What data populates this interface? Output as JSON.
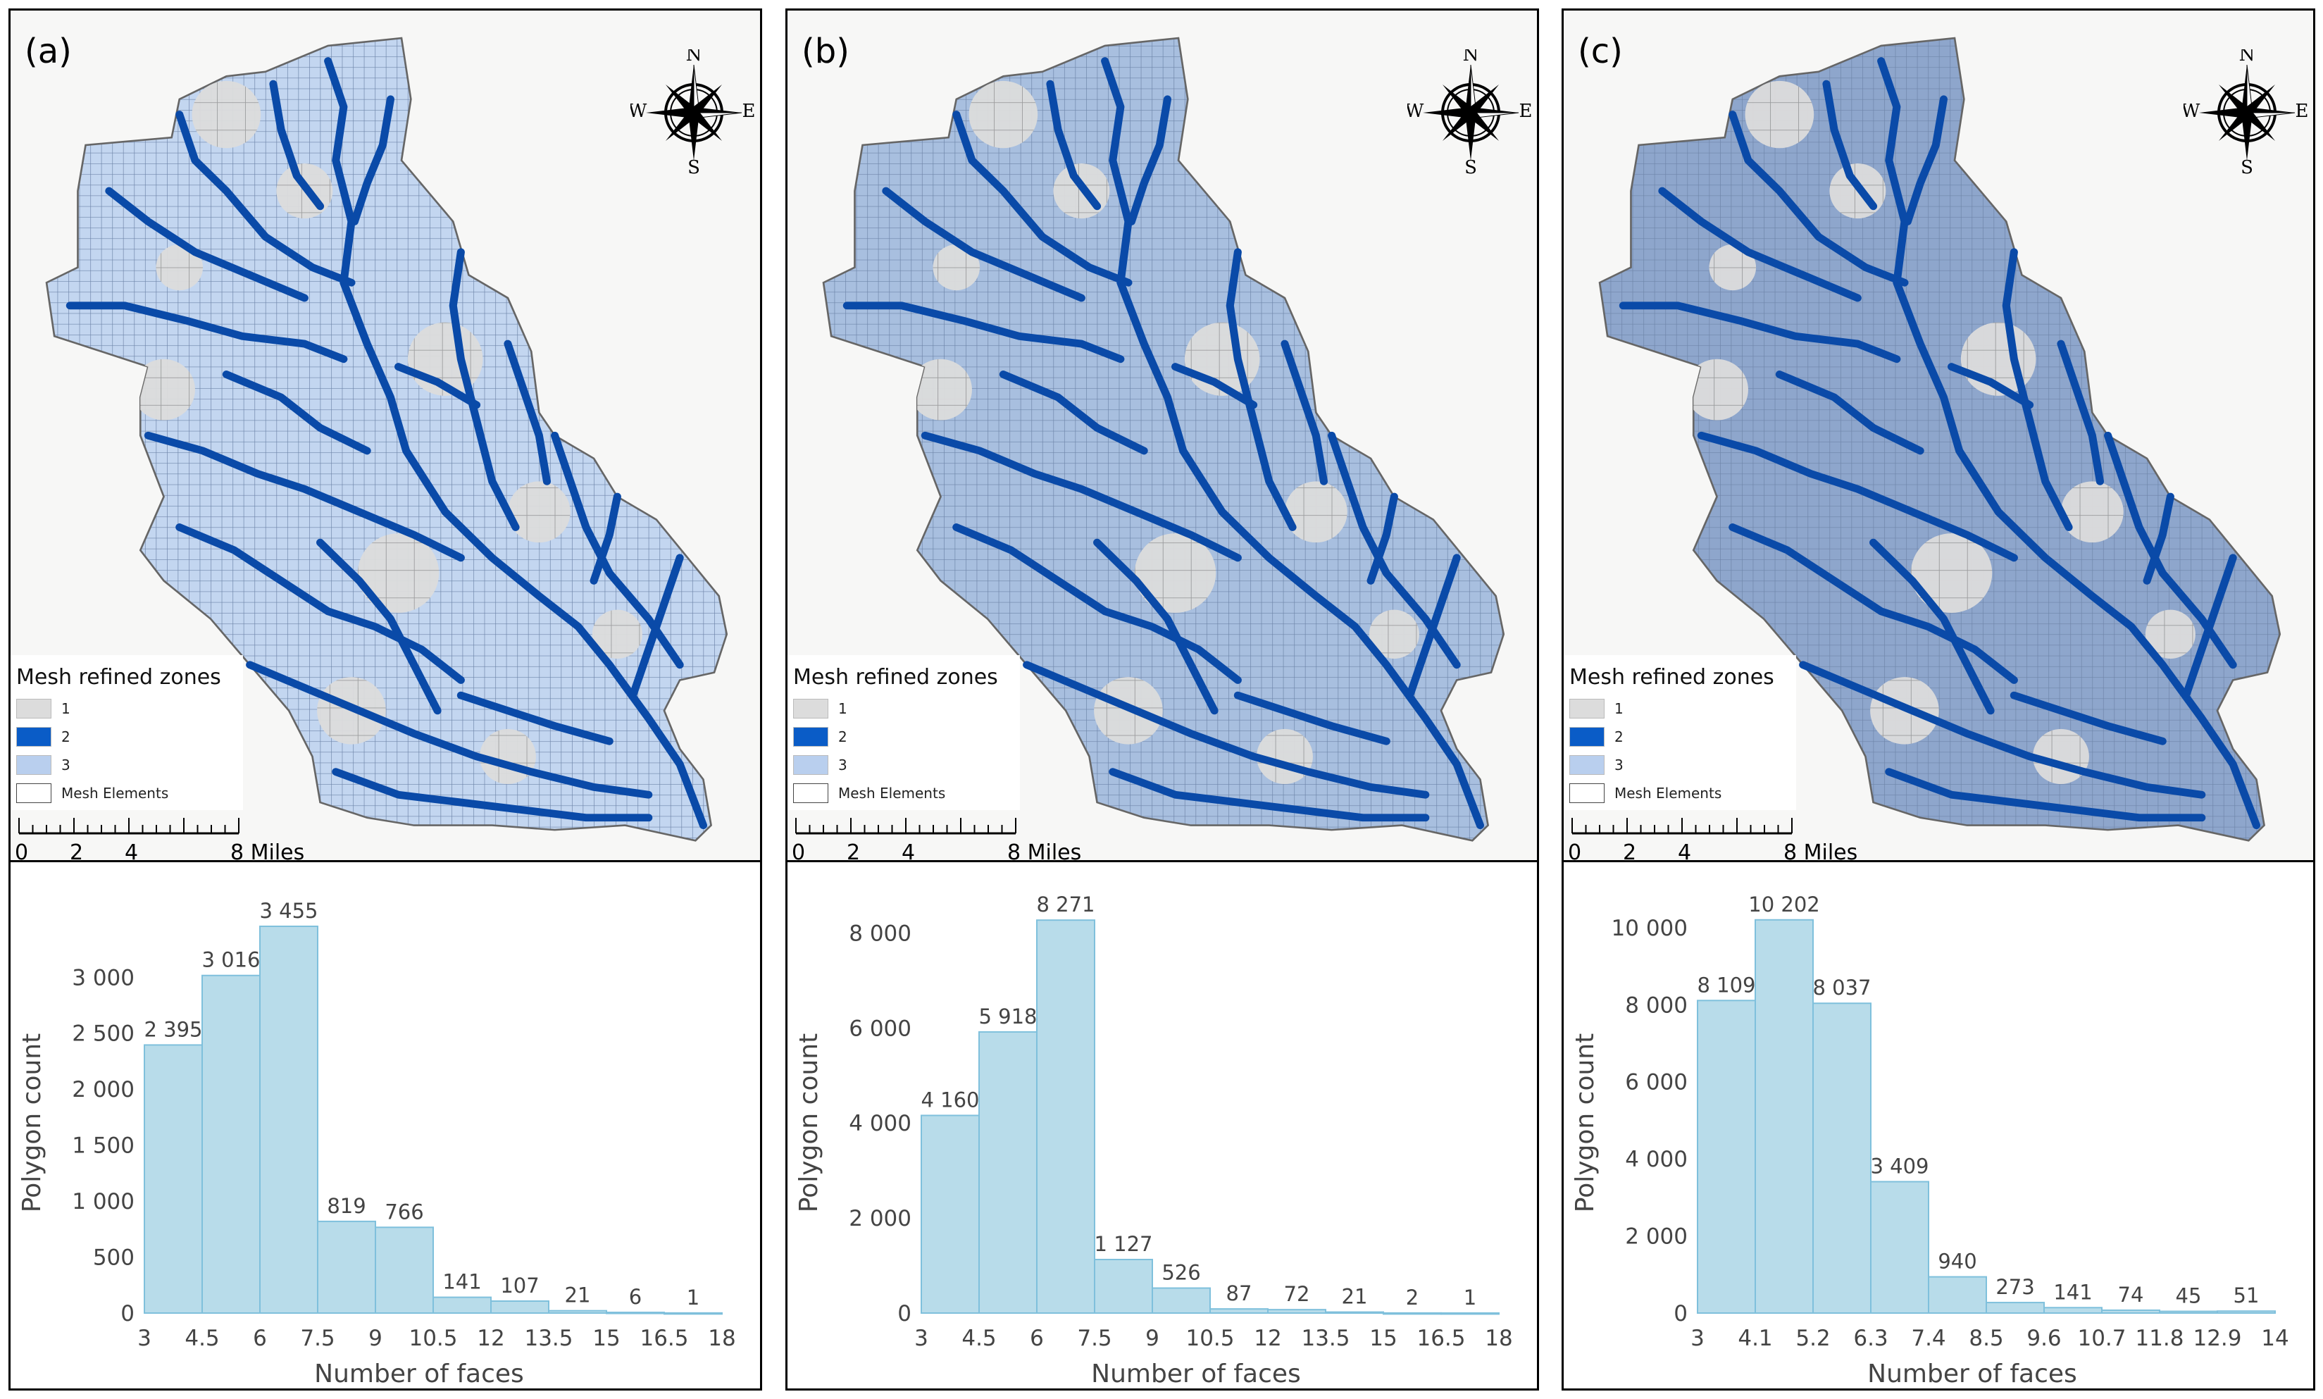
{
  "colors": {
    "zone1": "#dcdcdc",
    "zone2": "#0a5cc7",
    "zone3": "#b9cfee",
    "river": "#0a4aa8",
    "bar_fill": "#b8dcea",
    "bar_stroke": "#7fc0dc",
    "mesh_fill_a": "#c3d6f0",
    "mesh_fill_b": "#a8bfdf",
    "mesh_fill_c": "#8ea6cc"
  },
  "panels": [
    {
      "label": "(a)",
      "legend": {
        "title": "Mesh  refined zones",
        "items": [
          "1",
          "2",
          "3"
        ],
        "elements_label": "Mesh Elements"
      },
      "scale": {
        "ticks": [
          "0",
          "2",
          "4"
        ],
        "end": "8 Miles"
      },
      "compass": {
        "n": "N",
        "s": "S",
        "e": "E",
        "w": "W"
      },
      "chart_data": {
        "type": "bar",
        "title": "",
        "xlabel": "Number of faces",
        "ylabel": "Polygon count",
        "bin_edges": [
          3,
          4.5,
          6,
          7.5,
          9,
          10.5,
          12,
          13.5,
          15,
          16.5,
          18
        ],
        "x_tick_labels": [
          "3",
          "4.5",
          "6",
          "7.5",
          "9",
          "10.5",
          "12",
          "13.5",
          "15",
          "16.5",
          "18"
        ],
        "values": [
          2395,
          3016,
          3455,
          819,
          766,
          141,
          107,
          21,
          6,
          1
        ],
        "value_labels": [
          "2 395",
          "3 016",
          "3 455",
          "819",
          "766",
          "141",
          "107",
          "21",
          "6",
          "1"
        ],
        "y_ticks": [
          0,
          500,
          1000,
          1500,
          2000,
          2500,
          3000
        ],
        "y_tick_labels": [
          "0",
          "500",
          "1 000",
          "1 500",
          "2 000",
          "2 500",
          "3 000"
        ],
        "ylim": [
          0,
          3650
        ]
      }
    },
    {
      "label": "(b)",
      "legend": {
        "title": "Mesh  refined zones",
        "items": [
          "1",
          "2",
          "3"
        ],
        "elements_label": "Mesh Elements"
      },
      "scale": {
        "ticks": [
          "0",
          "2",
          "4"
        ],
        "end": "8 Miles"
      },
      "compass": {
        "n": "N",
        "s": "S",
        "e": "E",
        "w": "W"
      },
      "chart_data": {
        "type": "bar",
        "title": "",
        "xlabel": "Number of faces",
        "ylabel": "Polygon count",
        "bin_edges": [
          3,
          4.5,
          6,
          7.5,
          9,
          10.5,
          12,
          13.5,
          15,
          16.5,
          18
        ],
        "x_tick_labels": [
          "3",
          "4.5",
          "6",
          "7.5",
          "9",
          "10.5",
          "12",
          "13.5",
          "15",
          "16.5",
          "18"
        ],
        "values": [
          4160,
          5918,
          8271,
          1127,
          526,
          87,
          72,
          21,
          2,
          1
        ],
        "value_labels": [
          "4 160",
          "5 918",
          "8 271",
          "1 127",
          "526",
          "87",
          "72",
          "21",
          "2",
          "1"
        ],
        "y_ticks": [
          0,
          2000,
          4000,
          6000,
          8000
        ],
        "y_tick_labels": [
          "0",
          "2 000",
          "4 000",
          "6 000",
          "8 000"
        ],
        "ylim": [
          0,
          8600
        ]
      }
    },
    {
      "label": "(c)",
      "legend": {
        "title": "Mesh  refined zones",
        "items": [
          "1",
          "2",
          "3"
        ],
        "elements_label": "Mesh Elements"
      },
      "scale": {
        "ticks": [
          "0",
          "2",
          "4"
        ],
        "end": "8 Miles"
      },
      "compass": {
        "n": "N",
        "s": "S",
        "e": "E",
        "w": "W"
      },
      "chart_data": {
        "type": "bar",
        "title": "",
        "xlabel": "Number of faces",
        "ylabel": "Polygon count",
        "bin_edges": [
          3,
          4.1,
          5.2,
          6.3,
          7.4,
          8.5,
          9.6,
          10.7,
          11.8,
          12.9,
          14
        ],
        "x_tick_labels": [
          "3",
          "4.1",
          "5.2",
          "6.3",
          "7.4",
          "8.5",
          "9.6",
          "10.7",
          "11.8",
          "12.9",
          "14"
        ],
        "values": [
          8109,
          10202,
          8037,
          3409,
          940,
          273,
          141,
          74,
          45,
          51
        ],
        "value_labels": [
          "8 109",
          "10 202",
          "8 037",
          "3 409",
          "940",
          "273",
          "141",
          "74",
          "45",
          "51"
        ],
        "y_ticks": [
          0,
          2000,
          4000,
          6000,
          8000,
          10000
        ],
        "y_tick_labels": [
          "0",
          "2 000",
          "4 000",
          "6 000",
          "8 000",
          "10 000"
        ],
        "ylim": [
          0,
          10600
        ]
      }
    }
  ]
}
